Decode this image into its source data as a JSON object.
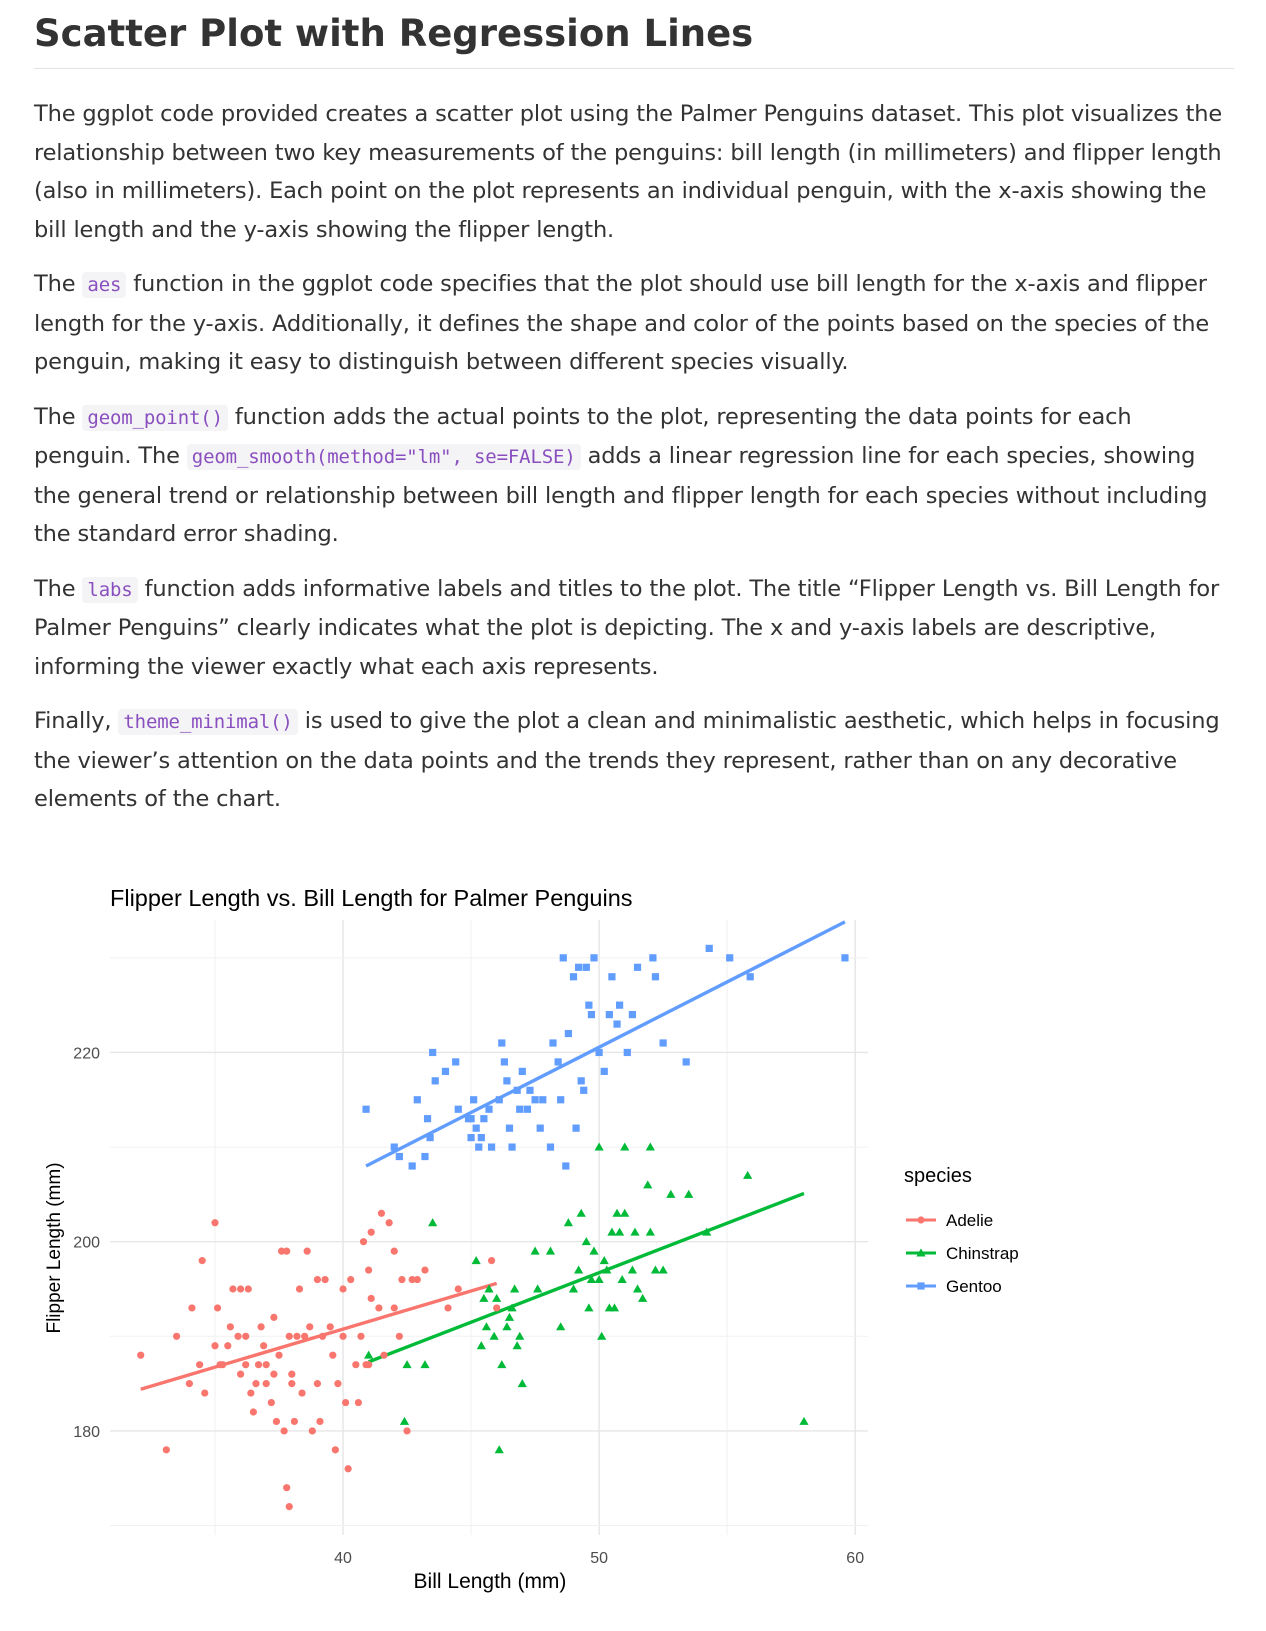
{
  "doc": {
    "title": "Scatter Plot with Regression Lines",
    "p1": "The ggplot code provided creates a scatter plot using the Palmer Penguins dataset. This plot visualizes the relationship between two key measurements of the penguins: bill length (in millimeters) and flipper length (also in millimeters). Each point on the plot represents an individual penguin, with the x-axis showing the bill length and the y-axis showing the flipper length.",
    "p2_a": "The ",
    "p2_code": "aes",
    "p2_b": " function in the ggplot code specifies that the plot should use bill length for the x-axis and flipper length for the y-axis. Additionally, it defines the shape and color of the points based on the species of the penguin, making it easy to distinguish between different species visually.",
    "p3_a": "The ",
    "p3_code1": "geom_point()",
    "p3_b": " function adds the actual points to the plot, representing the data points for each penguin. The ",
    "p3_code2": "geom_smooth(method=\"lm\", se=FALSE)",
    "p3_c": " adds a linear regression line for each species, showing the general trend or relationship between bill length and flipper length for each species without including the standard error shading.",
    "p4_a": "The ",
    "p4_code": "labs",
    "p4_b": " function adds informative labels and titles to the plot. The title “Flipper Length vs. Bill Length for Palmer Penguins” clearly indicates what the plot is depicting. The x and y-axis labels are descriptive, informing the viewer exactly what each axis represents.",
    "p5_a": "Finally, ",
    "p5_code": "theme_minimal()",
    "p5_b": " is used to give the plot a clean and minimalistic aesthetic, which helps in focusing the viewer’s attention on the data points and the trends they represent, rather than on any decorative elements of the chart."
  },
  "chart_data": {
    "type": "scatter",
    "title": "Flipper Length vs. Bill Length for Palmer Penguins",
    "xlabel": "Bill Length (mm)",
    "ylabel": "Flipper Length (mm)",
    "xlim": [
      30.9,
      60.5
    ],
    "ylim": [
      169.0,
      234.0
    ],
    "xticks": [
      40,
      50,
      60
    ],
    "yticks": [
      180,
      200,
      220
    ],
    "grid": true,
    "legend_title": "species",
    "legend_position": "right",
    "series": [
      {
        "name": "Adelie",
        "color": "#F8766D",
        "marker": "circle",
        "regression": {
          "x": [
            32.1,
            46.0
          ],
          "y": [
            184.4,
            195.6
          ]
        },
        "points": [
          [
            32.1,
            188
          ],
          [
            33.1,
            178
          ],
          [
            33.5,
            190
          ],
          [
            34.0,
            185
          ],
          [
            34.1,
            193
          ],
          [
            34.4,
            187
          ],
          [
            34.5,
            198
          ],
          [
            34.6,
            184
          ],
          [
            35.0,
            189
          ],
          [
            35.1,
            193
          ],
          [
            35.2,
            187
          ],
          [
            35.3,
            187
          ],
          [
            35.5,
            189
          ],
          [
            35.6,
            191
          ],
          [
            35.7,
            195
          ],
          [
            35.9,
            190
          ],
          [
            36.0,
            186
          ],
          [
            36.0,
            195
          ],
          [
            36.2,
            187
          ],
          [
            36.2,
            190
          ],
          [
            36.3,
            195
          ],
          [
            36.4,
            184
          ],
          [
            36.5,
            182
          ],
          [
            36.6,
            185
          ],
          [
            36.7,
            187
          ],
          [
            36.8,
            191
          ],
          [
            36.9,
            189
          ],
          [
            37.0,
            185
          ],
          [
            37.0,
            187
          ],
          [
            37.2,
            183
          ],
          [
            37.3,
            192
          ],
          [
            37.3,
            186
          ],
          [
            37.4,
            181
          ],
          [
            37.5,
            188
          ],
          [
            37.6,
            199
          ],
          [
            37.7,
            180
          ],
          [
            37.8,
            199
          ],
          [
            37.8,
            174
          ],
          [
            37.9,
            172
          ],
          [
            37.9,
            190
          ],
          [
            38.0,
            185
          ],
          [
            38.1,
            181
          ],
          [
            38.2,
            190
          ],
          [
            38.3,
            195
          ],
          [
            38.4,
            184
          ],
          [
            38.5,
            190
          ],
          [
            38.6,
            199
          ],
          [
            38.7,
            191
          ],
          [
            38.8,
            180
          ],
          [
            39.0,
            185
          ],
          [
            39.1,
            181
          ],
          [
            39.2,
            190
          ],
          [
            39.3,
            196
          ],
          [
            39.5,
            191
          ],
          [
            39.6,
            188
          ],
          [
            39.7,
            178
          ],
          [
            39.8,
            185
          ],
          [
            40.0,
            190
          ],
          [
            40.1,
            183
          ],
          [
            40.2,
            176
          ],
          [
            40.3,
            196
          ],
          [
            40.5,
            187
          ],
          [
            40.6,
            183
          ],
          [
            40.7,
            190
          ],
          [
            40.8,
            200
          ],
          [
            40.9,
            187
          ],
          [
            41.0,
            187
          ],
          [
            41.1,
            194
          ],
          [
            41.1,
            201
          ],
          [
            41.4,
            193
          ],
          [
            41.5,
            203
          ],
          [
            41.6,
            188
          ],
          [
            41.8,
            202
          ],
          [
            42.0,
            193
          ],
          [
            42.2,
            190
          ],
          [
            42.3,
            196
          ],
          [
            42.5,
            180
          ],
          [
            42.7,
            196
          ],
          [
            42.9,
            196
          ],
          [
            43.2,
            197
          ],
          [
            44.1,
            193
          ],
          [
            44.5,
            195
          ],
          [
            45.8,
            198
          ],
          [
            46.0,
            193
          ],
          [
            35.0,
            202
          ],
          [
            38.0,
            186
          ],
          [
            39.0,
            196
          ],
          [
            40.0,
            195
          ],
          [
            41.0,
            197
          ],
          [
            42.0,
            199
          ]
        ]
      },
      {
        "name": "Chinstrap",
        "color": "#00BA38",
        "marker": "triangle",
        "regression": {
          "x": [
            41.0,
            58.0
          ],
          "y": [
            187.3,
            205.1
          ]
        },
        "points": [
          [
            41.0,
            188
          ],
          [
            42.4,
            181
          ],
          [
            42.5,
            187
          ],
          [
            43.2,
            187
          ],
          [
            43.5,
            202
          ],
          [
            45.2,
            198
          ],
          [
            45.4,
            189
          ],
          [
            45.5,
            194
          ],
          [
            45.6,
            191
          ],
          [
            45.7,
            195
          ],
          [
            45.9,
            190
          ],
          [
            46.0,
            194
          ],
          [
            46.1,
            178
          ],
          [
            46.2,
            187
          ],
          [
            46.4,
            191
          ],
          [
            46.5,
            192
          ],
          [
            46.6,
            193
          ],
          [
            46.7,
            195
          ],
          [
            46.8,
            189
          ],
          [
            46.9,
            190
          ],
          [
            47.0,
            185
          ],
          [
            47.5,
            199
          ],
          [
            47.6,
            195
          ],
          [
            48.1,
            199
          ],
          [
            48.5,
            191
          ],
          [
            48.8,
            202
          ],
          [
            49.0,
            195
          ],
          [
            49.2,
            197
          ],
          [
            49.3,
            203
          ],
          [
            49.5,
            200
          ],
          [
            49.6,
            193
          ],
          [
            49.7,
            196
          ],
          [
            49.8,
            199
          ],
          [
            50.0,
            196
          ],
          [
            50.1,
            190
          ],
          [
            50.2,
            198
          ],
          [
            50.3,
            197
          ],
          [
            50.4,
            193
          ],
          [
            50.5,
            201
          ],
          [
            50.6,
            193
          ],
          [
            50.7,
            203
          ],
          [
            50.8,
            201
          ],
          [
            50.9,
            196
          ],
          [
            51.0,
            203
          ],
          [
            51.3,
            197
          ],
          [
            51.4,
            201
          ],
          [
            51.5,
            195
          ],
          [
            51.7,
            194
          ],
          [
            51.9,
            206
          ],
          [
            52.0,
            201
          ],
          [
            52.2,
            197
          ],
          [
            52.5,
            197
          ],
          [
            52.8,
            205
          ],
          [
            53.5,
            205
          ],
          [
            54.2,
            201
          ],
          [
            55.8,
            207
          ],
          [
            58.0,
            181
          ],
          [
            50.0,
            210
          ],
          [
            52.0,
            210
          ],
          [
            51.0,
            210
          ]
        ]
      },
      {
        "name": "Gentoo",
        "color": "#619CFF",
        "marker": "square",
        "regression": {
          "x": [
            40.9,
            59.6
          ],
          "y": [
            208.0,
            233.8
          ]
        },
        "points": [
          [
            40.9,
            214
          ],
          [
            42.0,
            210
          ],
          [
            42.2,
            209
          ],
          [
            42.7,
            208
          ],
          [
            42.9,
            215
          ],
          [
            43.2,
            209
          ],
          [
            43.3,
            213
          ],
          [
            43.4,
            211
          ],
          [
            43.5,
            220
          ],
          [
            43.6,
            217
          ],
          [
            44.0,
            218
          ],
          [
            44.4,
            219
          ],
          [
            44.5,
            214
          ],
          [
            44.9,
            213
          ],
          [
            45.0,
            211
          ],
          [
            45.1,
            215
          ],
          [
            45.2,
            212
          ],
          [
            45.3,
            210
          ],
          [
            45.4,
            211
          ],
          [
            45.5,
            213
          ],
          [
            45.7,
            214
          ],
          [
            45.8,
            210
          ],
          [
            46.1,
            215
          ],
          [
            46.2,
            221
          ],
          [
            46.3,
            219
          ],
          [
            46.4,
            217
          ],
          [
            46.5,
            212
          ],
          [
            46.6,
            210
          ],
          [
            46.8,
            216
          ],
          [
            46.9,
            214
          ],
          [
            47.2,
            214
          ],
          [
            47.3,
            216
          ],
          [
            47.5,
            215
          ],
          [
            47.7,
            212
          ],
          [
            47.8,
            215
          ],
          [
            48.1,
            210
          ],
          [
            48.2,
            221
          ],
          [
            48.4,
            219
          ],
          [
            48.5,
            215
          ],
          [
            48.6,
            230
          ],
          [
            48.7,
            208
          ],
          [
            48.8,
            222
          ],
          [
            49.0,
            228
          ],
          [
            49.1,
            212
          ],
          [
            49.2,
            229
          ],
          [
            49.3,
            217
          ],
          [
            49.4,
            216
          ],
          [
            49.5,
            229
          ],
          [
            49.6,
            225
          ],
          [
            49.8,
            230
          ],
          [
            50.0,
            220
          ],
          [
            50.2,
            218
          ],
          [
            50.4,
            224
          ],
          [
            50.5,
            228
          ],
          [
            50.8,
            225
          ],
          [
            51.1,
            220
          ],
          [
            51.3,
            224
          ],
          [
            51.5,
            229
          ],
          [
            52.1,
            230
          ],
          [
            52.2,
            228
          ],
          [
            52.5,
            221
          ],
          [
            53.4,
            219
          ],
          [
            54.3,
            231
          ],
          [
            55.1,
            230
          ],
          [
            55.9,
            228
          ],
          [
            59.6,
            230
          ],
          [
            47.0,
            218
          ],
          [
            45.0,
            213
          ],
          [
            49.7,
            224
          ],
          [
            50.7,
            223
          ]
        ]
      }
    ]
  }
}
